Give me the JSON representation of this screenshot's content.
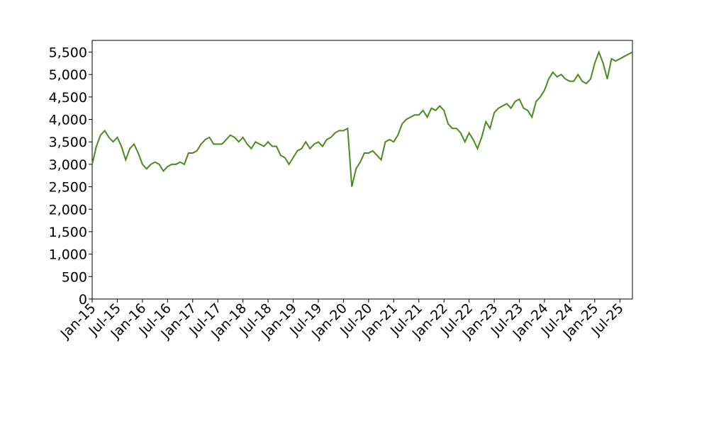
{
  "chart_data": {
    "type": "line",
    "color": "#4a8a1f",
    "x": [
      "2015-01",
      "2015-02",
      "2015-03",
      "2015-04",
      "2015-05",
      "2015-06",
      "2015-07",
      "2015-08",
      "2015-09",
      "2015-10",
      "2015-11",
      "2015-12",
      "2016-01",
      "2016-02",
      "2016-03",
      "2016-04",
      "2016-05",
      "2016-06",
      "2016-07",
      "2016-08",
      "2016-09",
      "2016-10",
      "2016-11",
      "2016-12",
      "2017-01",
      "2017-02",
      "2017-03",
      "2017-04",
      "2017-05",
      "2017-06",
      "2017-07",
      "2017-08",
      "2017-09",
      "2017-10",
      "2017-11",
      "2017-12",
      "2018-01",
      "2018-02",
      "2018-03",
      "2018-04",
      "2018-05",
      "2018-06",
      "2018-07",
      "2018-08",
      "2018-09",
      "2018-10",
      "2018-11",
      "2018-12",
      "2019-01",
      "2019-02",
      "2019-03",
      "2019-04",
      "2019-05",
      "2019-06",
      "2019-07",
      "2019-08",
      "2019-09",
      "2019-10",
      "2019-11",
      "2019-12",
      "2020-01",
      "2020-02",
      "2020-03",
      "2020-04",
      "2020-05",
      "2020-06",
      "2020-07",
      "2020-08",
      "2020-09",
      "2020-10",
      "2020-11",
      "2020-12",
      "2021-01",
      "2021-02",
      "2021-03",
      "2021-04",
      "2021-05",
      "2021-06",
      "2021-07",
      "2021-08",
      "2021-09",
      "2021-10",
      "2021-11",
      "2021-12",
      "2022-01",
      "2022-02",
      "2022-03",
      "2022-04",
      "2022-05",
      "2022-06",
      "2022-07",
      "2022-08",
      "2022-09",
      "2022-10",
      "2022-11",
      "2022-12",
      "2023-01",
      "2023-02",
      "2023-03",
      "2023-04",
      "2023-05",
      "2023-06",
      "2023-07",
      "2023-08",
      "2023-09",
      "2023-10",
      "2023-11",
      "2023-12",
      "2024-01",
      "2024-02",
      "2024-03",
      "2024-04",
      "2024-05",
      "2024-06",
      "2024-07",
      "2024-08",
      "2024-09",
      "2024-10",
      "2024-11",
      "2024-12",
      "2025-01",
      "2025-02",
      "2025-03",
      "2025-04",
      "2025-05",
      "2025-06",
      "2025-07",
      "2025-08",
      "2025-09",
      "2025-10"
    ],
    "values": [
      3000,
      3400,
      3650,
      3750,
      3600,
      3500,
      3600,
      3400,
      3100,
      3350,
      3450,
      3250,
      3000,
      2900,
      3000,
      3050,
      3000,
      2850,
      2950,
      3000,
      3000,
      3050,
      3000,
      3250,
      3250,
      3300,
      3450,
      3550,
      3600,
      3450,
      3450,
      3450,
      3550,
      3650,
      3600,
      3500,
      3600,
      3450,
      3350,
      3500,
      3450,
      3400,
      3500,
      3400,
      3400,
      3200,
      3150,
      3000,
      3150,
      3300,
      3350,
      3500,
      3350,
      3450,
      3500,
      3400,
      3550,
      3600,
      3700,
      3750,
      3750,
      3800,
      2500,
      2900,
      3050,
      3250,
      3250,
      3300,
      3200,
      3100,
      3500,
      3550,
      3500,
      3650,
      3900,
      4000,
      4050,
      4100,
      4100,
      4200,
      4050,
      4250,
      4200,
      4300,
      4200,
      3900,
      3800,
      3800,
      3700,
      3500,
      3700,
      3550,
      3350,
      3600,
      3950,
      3800,
      4150,
      4250,
      4300,
      4350,
      4250,
      4400,
      4450,
      4250,
      4200,
      4050,
      4400,
      4500,
      4650,
      4900,
      5050,
      4950,
      5000,
      4900,
      4850,
      4850,
      5000,
      4850,
      4800,
      4900,
      5250,
      5500,
      5250,
      4900,
      5350,
      5300,
      5350,
      5400,
      5450,
      5500
    ],
    "xlim": [
      "2015-01",
      "2025-10"
    ],
    "xticks": [
      {
        "value": "2015-01",
        "label": "Jan-15"
      },
      {
        "value": "2015-07",
        "label": "Jul-15"
      },
      {
        "value": "2016-01",
        "label": "Jan-16"
      },
      {
        "value": "2016-07",
        "label": "Jul-16"
      },
      {
        "value": "2017-01",
        "label": "Jan-17"
      },
      {
        "value": "2017-07",
        "label": "Jul-17"
      },
      {
        "value": "2018-01",
        "label": "Jan-18"
      },
      {
        "value": "2018-07",
        "label": "Jul-18"
      },
      {
        "value": "2019-01",
        "label": "Jan-19"
      },
      {
        "value": "2019-07",
        "label": "Jul-19"
      },
      {
        "value": "2020-01",
        "label": "Jan-20"
      },
      {
        "value": "2020-07",
        "label": "Jul-20"
      },
      {
        "value": "2021-01",
        "label": "Jan-21"
      },
      {
        "value": "2021-07",
        "label": "Jul-21"
      },
      {
        "value": "2022-01",
        "label": "Jan-22"
      },
      {
        "value": "2022-07",
        "label": "Jul-22"
      },
      {
        "value": "2023-01",
        "label": "Jan-23"
      },
      {
        "value": "2023-07",
        "label": "Jul-23"
      },
      {
        "value": "2024-01",
        "label": "Jan-24"
      },
      {
        "value": "2024-07",
        "label": "Jul-24"
      },
      {
        "value": "2025-01",
        "label": "Jan-25"
      },
      {
        "value": "2025-07",
        "label": "Jul-25"
      }
    ],
    "ylim": [
      0,
      5760
    ],
    "yticks": [
      0,
      500,
      {
        "value": 1000,
        "label": "1,000"
      },
      {
        "value": 1500,
        "label": "1,500"
      },
      {
        "value": 2000,
        "label": "2,000"
      },
      {
        "value": 2500,
        "label": "2,500"
      },
      {
        "value": 3000,
        "label": "3,000"
      },
      {
        "value": 3500,
        "label": "3,500"
      },
      {
        "value": 4000,
        "label": "4,000"
      },
      {
        "value": 4500,
        "label": "4,500"
      },
      {
        "value": 5000,
        "label": "5,000"
      },
      {
        "value": 5500,
        "label": "5,500"
      }
    ],
    "grid": false
  }
}
